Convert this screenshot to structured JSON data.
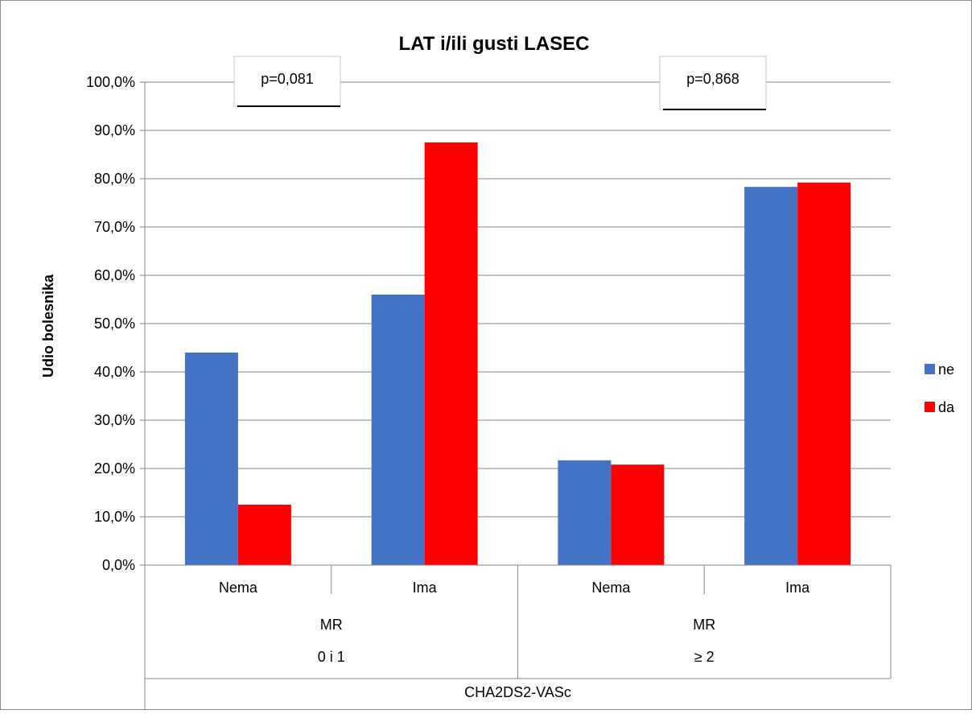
{
  "chart_data": {
    "type": "bar",
    "title": "LAT i/ili gusti LASEC",
    "ylabel": "Udio bolesnika",
    "ylim": [
      0,
      100
    ],
    "y_ticks": [
      "0,0%",
      "10,0%",
      "20,0%",
      "30,0%",
      "40,0%",
      "50,0%",
      "60,0%",
      "70,0%",
      "80,0%",
      "90,0%",
      "100,0%"
    ],
    "categories": [
      "Nema",
      "Ima",
      "Nema",
      "Ima"
    ],
    "groups": [
      {
        "label_line1": "MR",
        "label_line2": "0 i 1",
        "p_value": "p=0,081"
      },
      {
        "label_line1": "MR",
        "label_line2": "≥ 2",
        "p_value": "p=0,868"
      }
    ],
    "outer_label": "CHA2DS2-VASc",
    "series": [
      {
        "name": "ne",
        "color": "#4472C4",
        "values": [
          44.0,
          56.0,
          21.7,
          78.3
        ]
      },
      {
        "name": "da",
        "color": "#FF0000",
        "values": [
          12.5,
          87.5,
          20.8,
          79.2
        ]
      }
    ],
    "grid": true,
    "legend": "right"
  }
}
